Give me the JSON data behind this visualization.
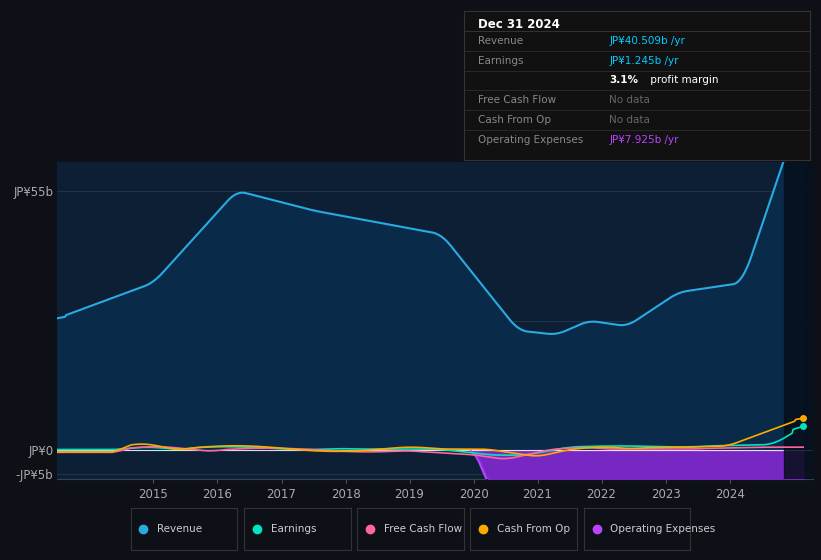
{
  "bg_color": "#0d1117",
  "plot_area_bg": "#0d1f35",
  "revenue_color": "#29abe2",
  "earnings_color": "#00e5c0",
  "fcf_color": "#ff6699",
  "cashfromop_color": "#ffaa00",
  "opex_color": "#bb44ff",
  "opex_fill": "#2a1060",
  "opex_top": "#9933ee",
  "rev_fill": "#0a2a4a",
  "grid_color": "#1e3a52",
  "zero_line_color": "#ffffff",
  "tick_color": "#aaaaaa",
  "info_bg": "#111111",
  "info_border": "#333333",
  "legend_bg": "#0d1117",
  "legend_border": "#333333",
  "info_title": "Dec 31 2024",
  "info_title_color": "#ffffff",
  "info_label_color": "#888888",
  "info_rows": [
    {
      "label": "Revenue",
      "value": "JP¥40.509b /yr",
      "color": "#00ccff"
    },
    {
      "label": "Earnings",
      "value": "JP¥1.245b /yr",
      "color": "#00ccff"
    },
    {
      "label": "",
      "value": "3.1% profit margin",
      "color": "#ffffff",
      "bold_pct": "3.1%"
    },
    {
      "label": "Free Cash Flow",
      "value": "No data",
      "color": "#666666"
    },
    {
      "label": "Cash From Op",
      "value": "No data",
      "color": "#666666"
    },
    {
      "label": "Operating Expenses",
      "value": "JP¥7.925b /yr",
      "color": "#bb44ff"
    }
  ],
  "legend_items": [
    {
      "label": "Revenue",
      "color": "#29abe2"
    },
    {
      "label": "Earnings",
      "color": "#00e5c0"
    },
    {
      "label": "Free Cash Flow",
      "color": "#ff6699"
    },
    {
      "label": "Cash From Op",
      "color": "#ffaa00"
    },
    {
      "label": "Operating Expenses",
      "color": "#bb44ff"
    }
  ],
  "ylim": [
    -6,
    61
  ],
  "xlim": [
    2013.5,
    2025.3
  ],
  "ytick_vals": [
    -5,
    0,
    55
  ],
  "ytick_labels": [
    "-JP¥5b",
    "JP¥0",
    "JP¥55b"
  ],
  "xtick_vals": [
    2015,
    2016,
    2017,
    2018,
    2019,
    2020,
    2021,
    2022,
    2023,
    2024
  ]
}
